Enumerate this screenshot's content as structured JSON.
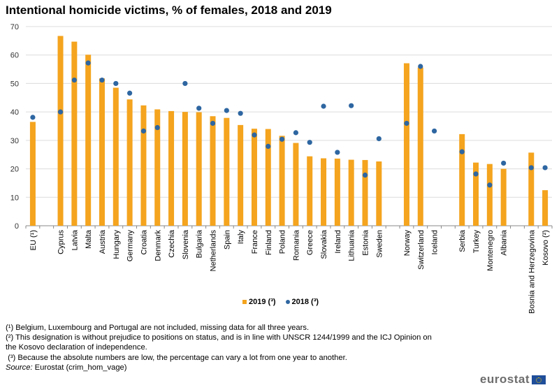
{
  "chart_data": {
    "type": "bar",
    "title": "Intentional homicide victims, % of females, 2018 and 2019",
    "xlabel": "",
    "ylabel": "",
    "ylim": [
      0,
      70
    ],
    "yticks": [
      0,
      10,
      20,
      30,
      40,
      50,
      60,
      70
    ],
    "grid": true,
    "legend_position": "bottom-center",
    "groups": [
      [
        "EU (¹)"
      ],
      [
        "Cyprus",
        "Latvia",
        "Malta",
        "Austria",
        "Hungary",
        "Germany",
        "Croatia",
        "Denmark",
        "Czechia",
        "Slovenia",
        "Bulgaria",
        "Netherlands",
        "Spain",
        "Italy",
        "France",
        "Finland",
        "Poland",
        "Romania",
        "Greece",
        "Slovakia",
        "Ireland",
        "Lithuania",
        "Estonia",
        "Sweden"
      ],
      [
        "Norway",
        "Switzerland",
        "Iceland"
      ],
      [
        "Serbia",
        "Turkey",
        "Montenegro",
        "Albania"
      ],
      [
        "Bosnia and Herzegovina",
        "Kosovo (²)"
      ]
    ],
    "categories": [
      "EU (¹)",
      "Cyprus",
      "Latvia",
      "Malta",
      "Austria",
      "Hungary",
      "Germany",
      "Croatia",
      "Denmark",
      "Czechia",
      "Slovenia",
      "Bulgaria",
      "Netherlands",
      "Spain",
      "Italy",
      "France",
      "Finland",
      "Poland",
      "Romania",
      "Greece",
      "Slovakia",
      "Ireland",
      "Lithuania",
      "Estonia",
      "Sweden",
      "Norway",
      "Switzerland",
      "Iceland",
      "Serbia",
      "Turkey",
      "Montenegro",
      "Albania",
      "Bosnia and Herzegovina",
      "Kosovo (²)"
    ],
    "series": [
      {
        "name": "2019 (³)",
        "kind": "bar",
        "color": "#f4a41e",
        "values": [
          36.5,
          66.7,
          64.7,
          60.1,
          51.8,
          48.5,
          44.4,
          42.3,
          40.9,
          40.3,
          40.0,
          39.9,
          38.5,
          37.9,
          35.4,
          34.1,
          34.0,
          31.6,
          29.1,
          24.4,
          23.7,
          23.6,
          23.2,
          23.1,
          22.6,
          57.1,
          55.6,
          null,
          32.2,
          22.2,
          21.7,
          20.0,
          25.7,
          12.5
        ]
      },
      {
        "name": "2018 (³)",
        "kind": "dot",
        "color": "#2e66a1",
        "values": [
          38.1,
          40.0,
          51.2,
          57.2,
          51.2,
          50.0,
          46.6,
          33.3,
          34.5,
          null,
          50.0,
          41.3,
          36.0,
          40.5,
          39.5,
          31.9,
          27.9,
          30.4,
          32.7,
          29.3,
          42.0,
          25.8,
          42.2,
          17.8,
          30.6,
          36.0,
          56.0,
          33.3,
          26.0,
          18.2,
          14.3,
          22.0,
          20.4,
          20.4
        ]
      }
    ]
  },
  "legend": {
    "items": [
      "2019 (³)",
      "2018 (³)"
    ]
  },
  "footnotes": [
    "(¹) Belgium, Luxembourg and Portugal are not included, missing data for all three years.",
    "(²) This designation is without prejudice to positions on status, and is in line with UNSCR 1244/1999 and the ICJ Opinion on the Kosovo declaration of independence.",
    " (³) Because the absolute numbers are low, the percentage can vary a lot from one year to another."
  ],
  "source": {
    "label": "Source:",
    "text": " Eurostat (crim_hom_vage)"
  },
  "logo": "eurostat"
}
